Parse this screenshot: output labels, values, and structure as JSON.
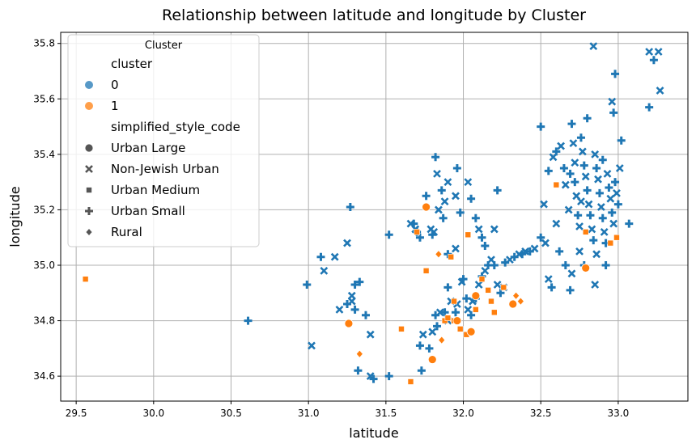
{
  "chart_data": {
    "type": "scatter",
    "title": "Relationship between latitude  and longitude by Cluster",
    "xlabel": "latitude",
    "ylabel": "longitude",
    "xlim": [
      29.4,
      33.45
    ],
    "ylim": [
      34.51,
      35.84
    ],
    "x_ticks": [
      "29.5",
      "30.0",
      "30.5",
      "31.0",
      "31.5",
      "32.0",
      "32.5",
      "33.0"
    ],
    "x_tick_values": [
      29.5,
      30.0,
      30.5,
      31.0,
      31.5,
      32.0,
      32.5,
      33.0
    ],
    "y_ticks": [
      "34.6",
      "34.8",
      "35.0",
      "35.2",
      "35.4",
      "35.6",
      "35.8"
    ],
    "y_tick_values": [
      34.6,
      34.8,
      35.0,
      35.2,
      35.4,
      35.6,
      35.8
    ],
    "grid": true,
    "legend": {
      "placement": "top-left",
      "title": "Cluster",
      "hue_title": "cluster",
      "hue_items": [
        {
          "label": "0",
          "color": "#1f77b4"
        },
        {
          "label": "1",
          "color": "#ff7f0e"
        }
      ],
      "style_title": "simplified_style_code",
      "style_items": [
        {
          "label": "Urban Large",
          "marker": "circle"
        },
        {
          "label": "Non-Jewish Urban",
          "marker": "x"
        },
        {
          "label": "Urban Medium",
          "marker": "square"
        },
        {
          "label": "Urban Small",
          "marker": "plus"
        },
        {
          "label": "Rural",
          "marker": "diamond"
        }
      ]
    },
    "series": [
      {
        "cluster": "0",
        "color": "#1f77b4",
        "points": [
          [
            31.27,
            35.21,
            "plus"
          ],
          [
            31.25,
            35.08,
            "x"
          ],
          [
            31.08,
            35.03,
            "plus"
          ],
          [
            31.17,
            35.03,
            "x"
          ],
          [
            31.1,
            34.98,
            "x"
          ],
          [
            30.99,
            34.93,
            "plus"
          ],
          [
            31.02,
            34.71,
            "x"
          ],
          [
            30.61,
            34.8,
            "plus"
          ],
          [
            31.2,
            34.84,
            "x"
          ],
          [
            31.25,
            34.86,
            "plus"
          ],
          [
            31.28,
            34.87,
            "x"
          ],
          [
            31.3,
            34.84,
            "plus"
          ],
          [
            31.28,
            34.89,
            "x"
          ],
          [
            31.3,
            34.93,
            "plus"
          ],
          [
            31.33,
            34.94,
            "plus"
          ],
          [
            31.37,
            34.82,
            "plus"
          ],
          [
            31.4,
            34.75,
            "x"
          ],
          [
            31.32,
            34.62,
            "plus"
          ],
          [
            31.4,
            34.6,
            "x"
          ],
          [
            31.42,
            34.59,
            "plus"
          ],
          [
            31.52,
            34.6,
            "plus"
          ],
          [
            31.52,
            35.11,
            "plus"
          ],
          [
            31.66,
            35.15,
            "x"
          ],
          [
            31.69,
            35.13,
            "x"
          ],
          [
            31.68,
            35.15,
            "plus"
          ],
          [
            31.7,
            35.12,
            "plus"
          ],
          [
            31.72,
            35.1,
            "plus"
          ],
          [
            31.76,
            35.25,
            "plus"
          ],
          [
            31.79,
            35.13,
            "x"
          ],
          [
            31.8,
            35.11,
            "plus"
          ],
          [
            31.81,
            35.12,
            "x"
          ],
          [
            31.82,
            35.39,
            "plus"
          ],
          [
            31.83,
            35.33,
            "x"
          ],
          [
            31.86,
            35.27,
            "plus"
          ],
          [
            31.88,
            35.23,
            "x"
          ],
          [
            31.87,
            35.17,
            "plus"
          ],
          [
            31.9,
            35.3,
            "x"
          ],
          [
            31.96,
            35.35,
            "plus"
          ],
          [
            31.95,
            35.25,
            "x"
          ],
          [
            31.98,
            35.19,
            "plus"
          ],
          [
            32.03,
            35.3,
            "x"
          ],
          [
            32.05,
            35.24,
            "plus"
          ],
          [
            32.08,
            35.17,
            "plus"
          ],
          [
            32.1,
            35.13,
            "x"
          ],
          [
            32.12,
            35.1,
            "plus"
          ],
          [
            32.14,
            35.07,
            "plus"
          ],
          [
            32.2,
            35.13,
            "x"
          ],
          [
            32.22,
            35.27,
            "plus"
          ],
          [
            31.95,
            35.06,
            "x"
          ],
          [
            31.9,
            35.04,
            "plus"
          ],
          [
            31.84,
            35.2,
            "x"
          ],
          [
            31.74,
            34.75,
            "x"
          ],
          [
            31.72,
            34.71,
            "plus"
          ],
          [
            31.73,
            34.62,
            "plus"
          ],
          [
            31.78,
            34.7,
            "plus"
          ],
          [
            31.8,
            34.76,
            "x"
          ],
          [
            31.83,
            34.78,
            "plus"
          ],
          [
            31.82,
            34.82,
            "plus"
          ],
          [
            31.85,
            34.83,
            "x"
          ],
          [
            31.88,
            34.83,
            "plus"
          ],
          [
            31.9,
            34.8,
            "x"
          ],
          [
            31.9,
            34.92,
            "plus"
          ],
          [
            31.92,
            34.87,
            "x"
          ],
          [
            31.95,
            34.83,
            "plus"
          ],
          [
            31.96,
            34.86,
            "x"
          ],
          [
            31.99,
            34.94,
            "x"
          ],
          [
            32.0,
            34.95,
            "plus"
          ],
          [
            32.02,
            34.88,
            "plus"
          ],
          [
            32.03,
            34.84,
            "x"
          ],
          [
            32.05,
            34.82,
            "plus"
          ],
          [
            32.06,
            34.87,
            "x"
          ],
          [
            32.08,
            34.88,
            "plus"
          ],
          [
            32.1,
            34.93,
            "x"
          ],
          [
            32.12,
            34.96,
            "plus"
          ],
          [
            32.14,
            34.98,
            "x"
          ],
          [
            32.16,
            35.0,
            "plus"
          ],
          [
            32.18,
            35.02,
            "x"
          ],
          [
            32.2,
            35.0,
            "plus"
          ],
          [
            32.22,
            34.93,
            "x"
          ],
          [
            32.24,
            34.9,
            "plus"
          ],
          [
            32.26,
            34.92,
            "x"
          ],
          [
            32.27,
            35.01,
            "plus"
          ],
          [
            32.3,
            35.02,
            "x"
          ],
          [
            32.33,
            35.03,
            "plus"
          ],
          [
            32.36,
            35.04,
            "x"
          ],
          [
            32.38,
            35.04,
            "plus"
          ],
          [
            32.4,
            35.05,
            "x"
          ],
          [
            32.43,
            35.05,
            "plus"
          ],
          [
            32.46,
            35.06,
            "x"
          ],
          [
            32.5,
            35.1,
            "plus"
          ],
          [
            32.53,
            35.08,
            "x"
          ],
          [
            32.55,
            34.95,
            "x"
          ],
          [
            32.57,
            34.92,
            "plus"
          ],
          [
            32.5,
            35.5,
            "plus"
          ],
          [
            32.52,
            35.22,
            "x"
          ],
          [
            32.55,
            35.34,
            "plus"
          ],
          [
            32.58,
            35.39,
            "x"
          ],
          [
            32.6,
            35.41,
            "plus"
          ],
          [
            32.63,
            35.43,
            "x"
          ],
          [
            32.65,
            35.35,
            "plus"
          ],
          [
            32.68,
            35.2,
            "x"
          ],
          [
            32.7,
            35.51,
            "plus"
          ],
          [
            32.71,
            35.44,
            "x"
          ],
          [
            32.72,
            35.3,
            "plus"
          ],
          [
            32.73,
            35.25,
            "x"
          ],
          [
            32.74,
            35.18,
            "plus"
          ],
          [
            32.75,
            35.14,
            "x"
          ],
          [
            32.76,
            35.46,
            "plus"
          ],
          [
            32.77,
            35.41,
            "x"
          ],
          [
            32.78,
            35.36,
            "plus"
          ],
          [
            32.79,
            35.32,
            "x"
          ],
          [
            32.8,
            35.27,
            "plus"
          ],
          [
            32.81,
            35.22,
            "x"
          ],
          [
            32.82,
            35.18,
            "plus"
          ],
          [
            32.83,
            35.13,
            "x"
          ],
          [
            32.84,
            35.09,
            "plus"
          ],
          [
            32.85,
            35.4,
            "x"
          ],
          [
            32.86,
            35.35,
            "plus"
          ],
          [
            32.87,
            35.31,
            "x"
          ],
          [
            32.88,
            35.26,
            "plus"
          ],
          [
            32.89,
            35.21,
            "x"
          ],
          [
            32.9,
            35.17,
            "plus"
          ],
          [
            32.91,
            35.12,
            "x"
          ],
          [
            32.92,
            35.08,
            "plus"
          ],
          [
            32.93,
            35.33,
            "x"
          ],
          [
            32.94,
            35.28,
            "plus"
          ],
          [
            32.95,
            35.24,
            "x"
          ],
          [
            32.96,
            35.19,
            "plus"
          ],
          [
            32.97,
            35.15,
            "x"
          ],
          [
            32.98,
            35.3,
            "plus"
          ],
          [
            32.99,
            35.26,
            "x"
          ],
          [
            33.0,
            35.22,
            "plus"
          ],
          [
            33.01,
            35.35,
            "x"
          ],
          [
            33.02,
            35.45,
            "plus"
          ],
          [
            32.96,
            35.59,
            "x"
          ],
          [
            32.97,
            35.55,
            "plus"
          ],
          [
            32.98,
            35.69,
            "plus"
          ],
          [
            33.07,
            35.15,
            "plus"
          ],
          [
            32.8,
            35.53,
            "plus"
          ],
          [
            32.84,
            35.79,
            "x"
          ],
          [
            33.2,
            35.77,
            "x"
          ],
          [
            33.23,
            35.74,
            "plus"
          ],
          [
            33.26,
            35.77,
            "x"
          ],
          [
            33.27,
            35.63,
            "x"
          ],
          [
            33.2,
            35.57,
            "plus"
          ],
          [
            32.75,
            35.05,
            "x"
          ],
          [
            32.78,
            35.0,
            "plus"
          ],
          [
            32.7,
            34.97,
            "x"
          ],
          [
            32.66,
            35.0,
            "plus"
          ],
          [
            32.6,
            35.15,
            "x"
          ],
          [
            32.62,
            35.05,
            "plus"
          ],
          [
            32.86,
            35.04,
            "x"
          ],
          [
            32.92,
            35.0,
            "plus"
          ],
          [
            32.69,
            34.91,
            "plus"
          ],
          [
            32.85,
            34.93,
            "x"
          ],
          [
            32.72,
            35.37,
            "x"
          ],
          [
            32.69,
            35.33,
            "plus"
          ],
          [
            32.66,
            35.29,
            "x"
          ],
          [
            32.76,
            35.23,
            "x"
          ],
          [
            32.9,
            35.38,
            "plus"
          ]
        ]
      },
      {
        "cluster": "1",
        "color": "#ff7f0e",
        "points": [
          [
            29.56,
            34.95,
            "square"
          ],
          [
            31.26,
            34.79,
            "circle"
          ],
          [
            31.33,
            34.68,
            "diamond"
          ],
          [
            31.6,
            34.77,
            "square"
          ],
          [
            31.66,
            34.58,
            "square"
          ],
          [
            31.7,
            35.12,
            "square"
          ],
          [
            31.76,
            35.21,
            "circle"
          ],
          [
            31.76,
            34.98,
            "square"
          ],
          [
            31.8,
            34.66,
            "circle"
          ],
          [
            31.84,
            35.04,
            "diamond"
          ],
          [
            31.86,
            34.73,
            "diamond"
          ],
          [
            31.88,
            34.8,
            "square"
          ],
          [
            31.9,
            34.81,
            "square"
          ],
          [
            31.92,
            35.03,
            "square"
          ],
          [
            31.94,
            34.8,
            "square"
          ],
          [
            31.94,
            34.87,
            "square"
          ],
          [
            31.96,
            34.8,
            "circle"
          ],
          [
            31.98,
            34.77,
            "square"
          ],
          [
            32.02,
            34.75,
            "square"
          ],
          [
            32.03,
            35.11,
            "square"
          ],
          [
            32.05,
            34.76,
            "circle"
          ],
          [
            32.08,
            34.89,
            "circle"
          ],
          [
            32.08,
            34.84,
            "square"
          ],
          [
            32.12,
            34.95,
            "square"
          ],
          [
            32.16,
            34.91,
            "square"
          ],
          [
            32.18,
            34.87,
            "square"
          ],
          [
            32.2,
            34.83,
            "square"
          ],
          [
            32.26,
            34.92,
            "square"
          ],
          [
            32.32,
            34.86,
            "circle"
          ],
          [
            32.34,
            34.89,
            "diamond"
          ],
          [
            32.37,
            34.87,
            "diamond"
          ],
          [
            32.6,
            35.29,
            "square"
          ],
          [
            32.79,
            34.99,
            "circle"
          ],
          [
            32.79,
            35.12,
            "square"
          ],
          [
            32.95,
            35.08,
            "square"
          ],
          [
            32.99,
            35.1,
            "square"
          ]
        ]
      }
    ]
  }
}
